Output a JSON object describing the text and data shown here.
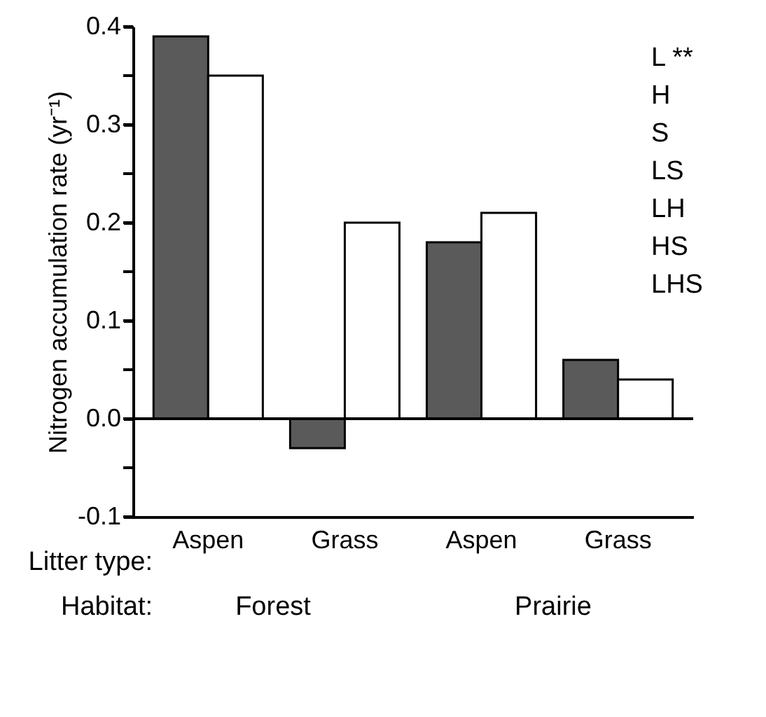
{
  "chart_data": {
    "type": "bar",
    "ylabel": "Nitrogen accumulation rate (yr⁻¹)",
    "categories": [
      "Aspen",
      "Grass",
      "Aspen",
      "Grass"
    ],
    "series": [
      {
        "color": "#5a5a5a",
        "values": [
          0.39,
          -0.03,
          0.18,
          0.06
        ]
      },
      {
        "color": "#ffffff",
        "values": [
          0.35,
          0.2,
          0.21,
          0.04
        ]
      }
    ],
    "ylim": [
      -0.1,
      0.4
    ],
    "yticks": [
      -0.1,
      {
        "value": -0.05,
        "label": null
      },
      {
        "value": 0,
        "label": "0.0"
      },
      {
        "value": 0.05,
        "label": null
      },
      0.1,
      {
        "value": 0.15,
        "label": null
      },
      0.2,
      {
        "value": 0.25,
        "label": null
      },
      0.3,
      {
        "value": 0.35,
        "label": null
      },
      0.4
    ],
    "ref_lines": [
      {
        "axis": "y",
        "value": 0,
        "color": "#000000"
      }
    ],
    "annotations": [
      "L **",
      "H",
      "S",
      "LS",
      "LH",
      "HS",
      "LHS",
      "Litter type:",
      "Habitat:",
      "Forest",
      "Prairie"
    ],
    "grid": false,
    "legend": false
  }
}
